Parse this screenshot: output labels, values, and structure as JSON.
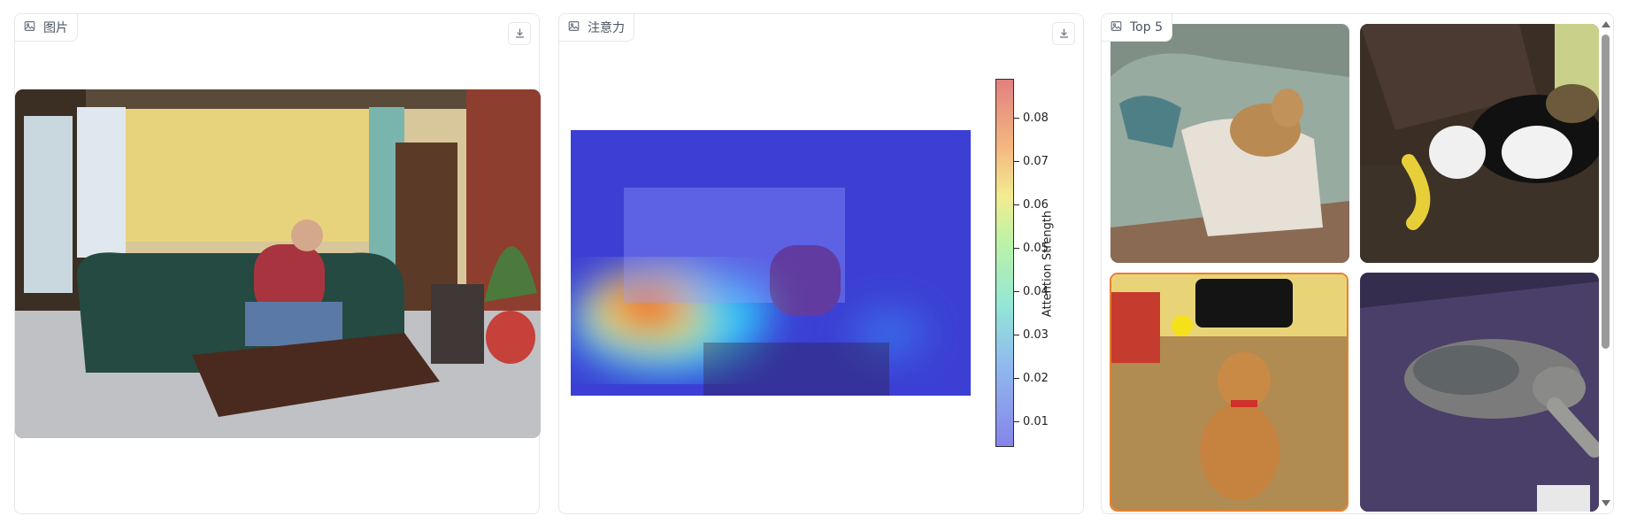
{
  "panels": {
    "image": {
      "label": "图片",
      "icon": "image-icon"
    },
    "attention": {
      "label": "注意力",
      "icon": "image-icon"
    },
    "top5": {
      "label": "Top 5",
      "icon": "image-icon"
    }
  },
  "colorbar": {
    "label": "Attention Strength",
    "ticks": [
      "0.08",
      "0.07",
      "0.06",
      "0.05",
      "0.04",
      "0.03",
      "0.02",
      "0.01"
    ]
  },
  "gallery": {
    "items": [
      "dog-on-gray-sofa",
      "cat-with-banana",
      "dog-on-tan-couch",
      "dog-on-purple-couch"
    ],
    "selected_index": 2
  },
  "colors": {
    "selection": "#e8802f",
    "border": "#e5e7eb"
  }
}
